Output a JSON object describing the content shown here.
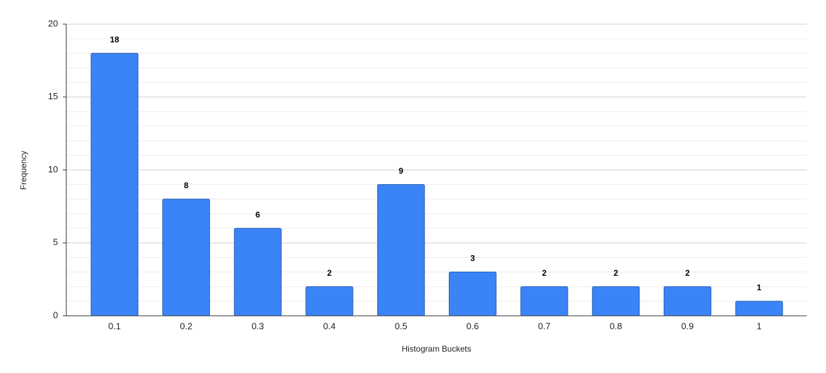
{
  "chart_data": {
    "type": "bar",
    "x_label": "Histogram Buckets",
    "y_label": "Frequency",
    "categories": [
      "0.1",
      "0.2",
      "0.3",
      "0.4",
      "0.5",
      "0.6",
      "0.7",
      "0.8",
      "0.9",
      "1"
    ],
    "values": [
      18,
      8,
      6,
      2,
      9,
      3,
      2,
      2,
      2,
      1
    ],
    "color": "#3a84f7",
    "ylim": [
      0,
      20
    ],
    "yticks": [
      0,
      5,
      10,
      15,
      20
    ],
    "grid": true,
    "minor_grid": true,
    "data_labels": true
  }
}
